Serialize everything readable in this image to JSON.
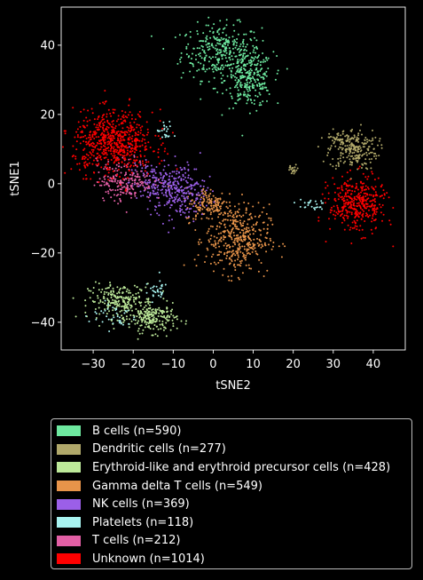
{
  "chart_data": {
    "type": "scatter",
    "title": "",
    "xlabel": "tSNE2",
    "ylabel": "tSNE1",
    "xlim": [
      -38,
      48
    ],
    "ylim": [
      -48,
      51
    ],
    "xticks": [
      -30,
      -20,
      -10,
      0,
      10,
      20,
      30,
      40
    ],
    "yticks": [
      -40,
      -20,
      0,
      20,
      40
    ],
    "grid": false,
    "legend_position": "below",
    "series": [
      {
        "name": "B cells (n=590)",
        "color": "#6ee9a0",
        "clusters": [
          {
            "cx": 2,
            "cy": 38,
            "sx": 5,
            "sy": 4,
            "n": 330
          },
          {
            "cx": 9,
            "cy": 30,
            "sx": 3,
            "sy": 4,
            "n": 260
          }
        ]
      },
      {
        "name": "Dendritic cells (n=277)",
        "color": "#b0a86a",
        "clusters": [
          {
            "cx": 35,
            "cy": 10,
            "sx": 3,
            "sy": 3,
            "n": 230
          },
          {
            "cx": 31,
            "cy": 13,
            "sx": 1,
            "sy": 1,
            "n": 25
          },
          {
            "cx": 20,
            "cy": 4,
            "sx": 0.8,
            "sy": 0.7,
            "n": 22
          }
        ]
      },
      {
        "name": "Erythroid-like and erythroid precursor cells (n=428)",
        "color": "#bde99a",
        "clusters": [
          {
            "cx": -23,
            "cy": -34,
            "sx": 4,
            "sy": 2.5,
            "n": 230
          },
          {
            "cx": -15,
            "cy": -39,
            "sx": 3,
            "sy": 2,
            "n": 198
          }
        ]
      },
      {
        "name": "Gamma delta T cells (n=549)",
        "color": "#e8944a",
        "clusters": [
          {
            "cx": 6,
            "cy": -16,
            "sx": 4,
            "sy": 5,
            "n": 400
          },
          {
            "cx": -1,
            "cy": -6,
            "sx": 3,
            "sy": 2.5,
            "n": 149
          }
        ]
      },
      {
        "name": "NK cells (n=369)",
        "color": "#9b5fe8",
        "clusters": [
          {
            "cx": -8,
            "cy": -2,
            "sx": 3,
            "sy": 4,
            "n": 220
          },
          {
            "cx": -15,
            "cy": 0,
            "sx": 3,
            "sy": 3,
            "n": 149
          }
        ]
      },
      {
        "name": "Platelets (n=118)",
        "color": "#a8f3f0",
        "clusters": [
          {
            "cx": -25,
            "cy": -38,
            "sx": 3,
            "sy": 2,
            "n": 40
          },
          {
            "cx": -14,
            "cy": -31,
            "sx": 1.5,
            "sy": 1.5,
            "n": 30
          },
          {
            "cx": 24,
            "cy": -6,
            "sx": 2,
            "sy": 0.8,
            "n": 25
          },
          {
            "cx": -12,
            "cy": 15,
            "sx": 1,
            "sy": 1.5,
            "n": 23
          }
        ]
      },
      {
        "name": "T cells (n=212)",
        "color": "#e35fa5",
        "clusters": [
          {
            "cx": -22,
            "cy": 1,
            "sx": 3.5,
            "sy": 3,
            "n": 212
          }
        ]
      },
      {
        "name": "Unknown (n=1014)",
        "color": "#ff0000",
        "clusters": [
          {
            "cx": -25,
            "cy": 12,
            "sx": 5,
            "sy": 4.5,
            "n": 640
          },
          {
            "cx": 36,
            "cy": -6,
            "sx": 3.5,
            "sy": 4,
            "n": 374
          }
        ]
      }
    ]
  }
}
